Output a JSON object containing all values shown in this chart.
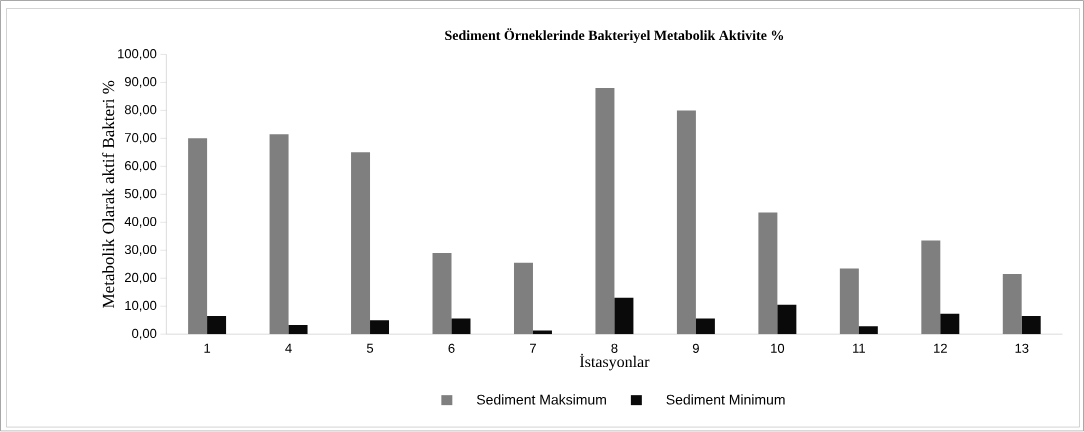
{
  "chart_data": {
    "type": "bar",
    "title": "Sediment Örneklerinde Bakteriyel Metabolik Aktivite %",
    "xlabel": "İstasyonlar",
    "ylabel": "Metabolik Olarak aktif Bakteri %",
    "categories": [
      "1",
      "4",
      "5",
      "6",
      "7",
      "8",
      "9",
      "10",
      "11",
      "12",
      "13"
    ],
    "series": [
      {
        "name": "Sediment Maksimum",
        "color": "#7f7f7f",
        "values": [
          70,
          71.5,
          65,
          29,
          25.5,
          88,
          80,
          43.5,
          23.5,
          33.5,
          21.5
        ]
      },
      {
        "name": "Sediment Minimum",
        "color": "#0a0a0a",
        "values": [
          6.5,
          3.3,
          5,
          5.6,
          1.3,
          13,
          5.6,
          10.5,
          2.8,
          7.3,
          6.5
        ]
      }
    ],
    "ylim": [
      0,
      100
    ],
    "yticks": [
      {
        "value": 0,
        "label": "0,00"
      },
      {
        "value": 10,
        "label": "10,00"
      },
      {
        "value": 20,
        "label": "20,00"
      },
      {
        "value": 30,
        "label": "30,00"
      },
      {
        "value": 40,
        "label": "40,00"
      },
      {
        "value": 50,
        "label": "50,00"
      },
      {
        "value": 60,
        "label": "60,00"
      },
      {
        "value": 70,
        "label": "70,00"
      },
      {
        "value": 80,
        "label": "80,00"
      },
      {
        "value": 90,
        "label": "90,00"
      },
      {
        "value": 100,
        "label": "100,00"
      }
    ],
    "grid": false,
    "legend": "bottom"
  }
}
